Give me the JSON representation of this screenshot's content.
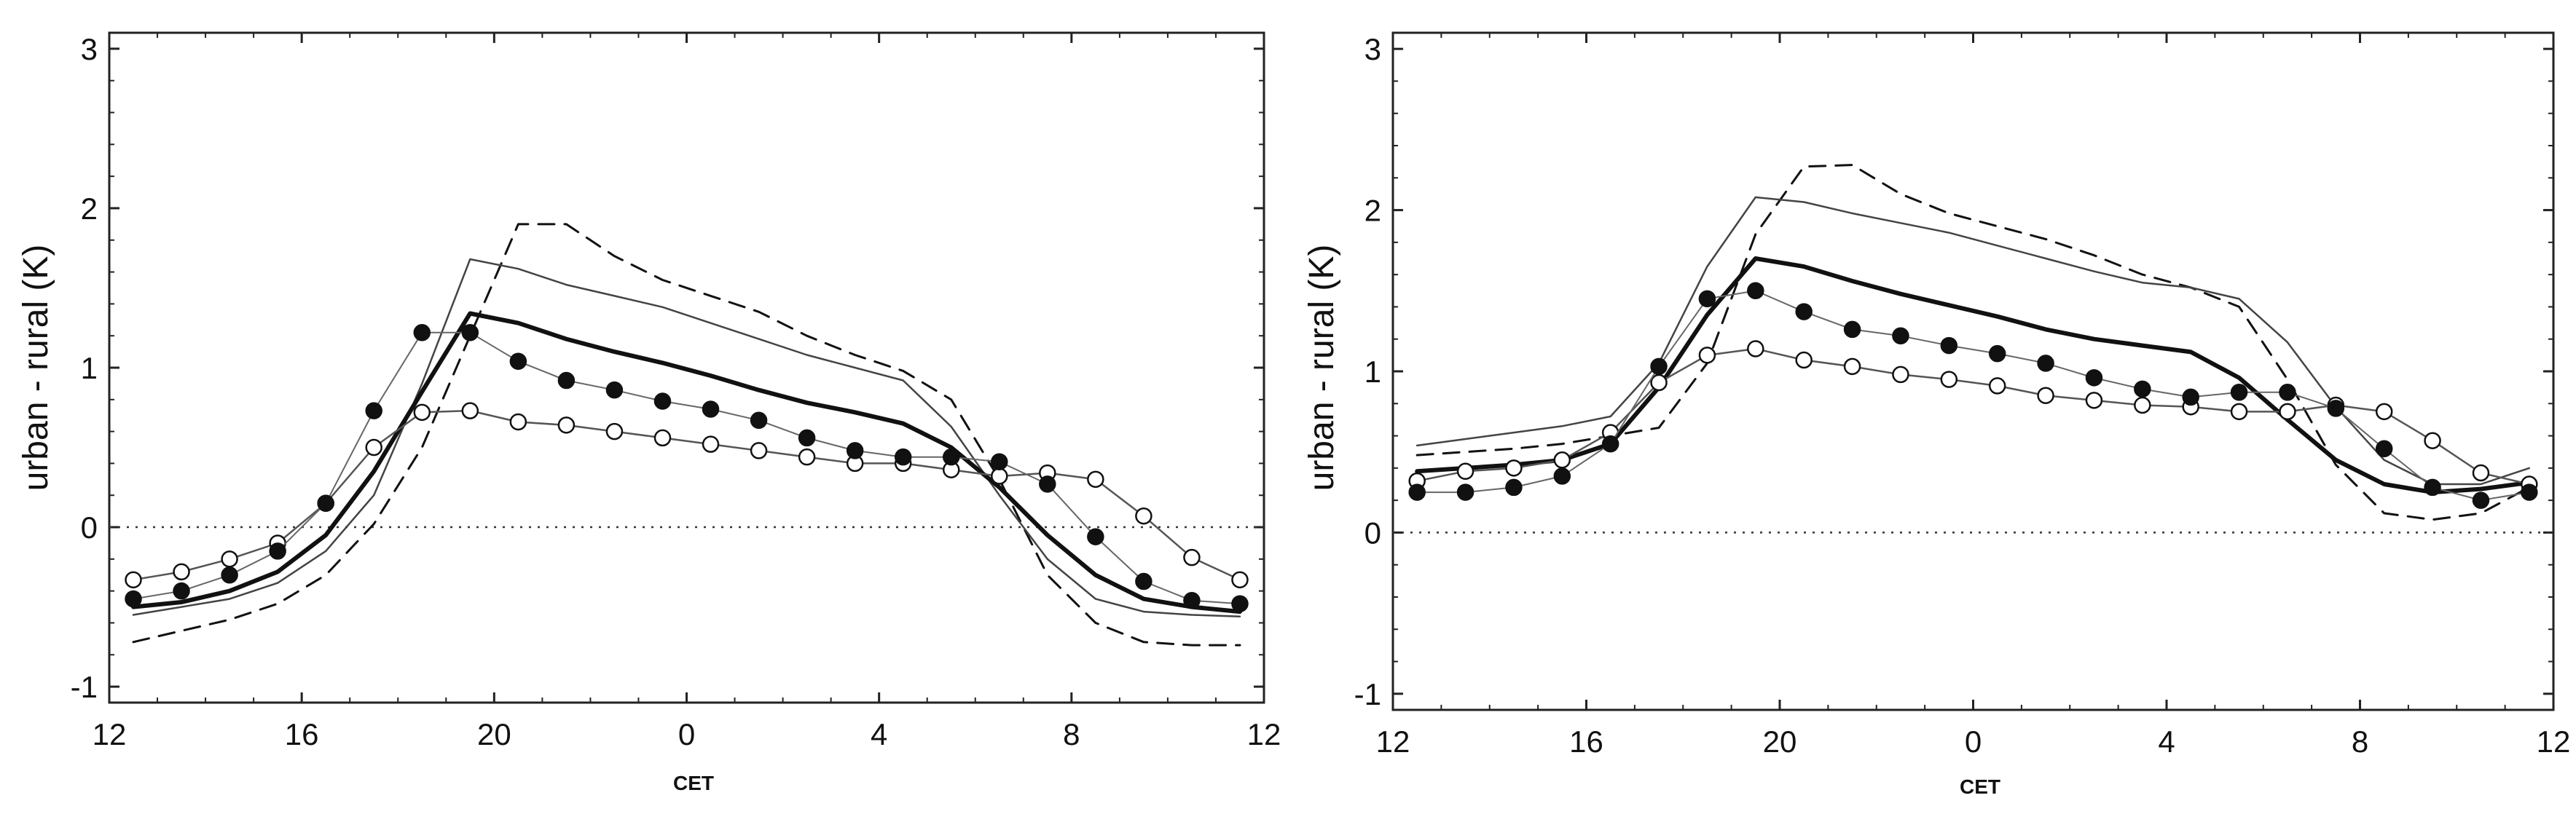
{
  "chart_data": [
    {
      "type": "line",
      "panel": "left",
      "title": "",
      "xlabel": "CET",
      "ylabel": "urban - rural (K)",
      "x_ticks": [
        "12",
        "16",
        "20",
        "0",
        "4",
        "8",
        "12"
      ],
      "y_ticks": [
        "-1",
        "0",
        "1",
        "2",
        "3"
      ],
      "xlim": [
        12,
        36
      ],
      "ylim": [
        -1.1,
        3.1
      ],
      "grid": false,
      "zero_line": true,
      "x": [
        12.5,
        13.5,
        14.5,
        15.5,
        16.5,
        17.5,
        18.5,
        19.5,
        20.5,
        21.5,
        22.5,
        23.5,
        24.5,
        25.5,
        26.5,
        27.5,
        28.5,
        29.5,
        30.5,
        31.5,
        32.5,
        33.5,
        34.5,
        35.5
      ],
      "series": [
        {
          "name": "filled circles",
          "style": "filled-marker",
          "values": [
            -0.45,
            -0.4,
            -0.3,
            -0.15,
            0.15,
            0.73,
            1.22,
            1.22,
            1.04,
            0.92,
            0.86,
            0.79,
            0.74,
            0.67,
            0.56,
            0.48,
            0.44,
            0.44,
            0.41,
            0.27,
            -0.06,
            -0.34,
            -0.46,
            -0.48
          ]
        },
        {
          "name": "open circles",
          "style": "open-marker",
          "values": [
            -0.33,
            -0.28,
            -0.2,
            -0.1,
            0.15,
            0.5,
            0.72,
            0.73,
            0.66,
            0.64,
            0.6,
            0.56,
            0.52,
            0.48,
            0.44,
            0.4,
            0.4,
            0.36,
            0.32,
            0.34,
            0.3,
            0.07,
            -0.19,
            -0.33
          ]
        },
        {
          "name": "thick solid",
          "style": "thick",
          "values": [
            -0.5,
            -0.47,
            -0.4,
            -0.28,
            -0.05,
            0.35,
            0.85,
            1.34,
            1.28,
            1.18,
            1.1,
            1.03,
            0.95,
            0.86,
            0.78,
            0.72,
            0.65,
            0.5,
            0.25,
            -0.05,
            -0.3,
            -0.45,
            -0.5,
            -0.53
          ]
        },
        {
          "name": "thin solid",
          "style": "thin",
          "values": [
            -0.55,
            -0.5,
            -0.45,
            -0.35,
            -0.15,
            0.2,
            0.9,
            1.68,
            1.62,
            1.52,
            1.45,
            1.38,
            1.28,
            1.18,
            1.08,
            1.0,
            0.92,
            0.63,
            0.2,
            -0.2,
            -0.45,
            -0.53,
            -0.55,
            -0.56
          ]
        },
        {
          "name": "dashed",
          "style": "dashed",
          "values": [
            -0.72,
            -0.65,
            -0.58,
            -0.48,
            -0.3,
            0.02,
            0.5,
            1.2,
            1.9,
            1.9,
            1.7,
            1.55,
            1.45,
            1.35,
            1.2,
            1.08,
            0.98,
            0.8,
            0.3,
            -0.3,
            -0.6,
            -0.72,
            -0.74,
            -0.74
          ]
        }
      ]
    },
    {
      "type": "line",
      "panel": "right",
      "title": "",
      "xlabel": "CET",
      "ylabel": "urban - rural (K)",
      "x_ticks": [
        "12",
        "16",
        "20",
        "0",
        "4",
        "8",
        "12"
      ],
      "y_ticks": [
        "-1",
        "0",
        "1",
        "2",
        "3"
      ],
      "xlim": [
        12,
        36
      ],
      "ylim": [
        -1.1,
        3.1
      ],
      "grid": false,
      "zero_line": true,
      "x": [
        12.5,
        13.5,
        14.5,
        15.5,
        16.5,
        17.5,
        18.5,
        19.5,
        20.5,
        21.5,
        22.5,
        23.5,
        24.5,
        25.5,
        26.5,
        27.5,
        28.5,
        29.5,
        30.5,
        31.5,
        32.5,
        33.5,
        34.5,
        35.5
      ],
      "series": [
        {
          "name": "filled circles",
          "style": "filled-marker",
          "values": [
            0.25,
            0.25,
            0.28,
            0.35,
            0.55,
            1.03,
            1.45,
            1.5,
            1.37,
            1.26,
            1.22,
            1.16,
            1.11,
            1.05,
            0.96,
            0.89,
            0.84,
            0.87,
            0.87,
            0.77,
            0.52,
            0.28,
            0.2,
            0.25
          ]
        },
        {
          "name": "open circles",
          "style": "open-marker",
          "values": [
            0.32,
            0.38,
            0.4,
            0.45,
            0.62,
            0.93,
            1.1,
            1.14,
            1.07,
            1.03,
            0.98,
            0.95,
            0.91,
            0.85,
            0.82,
            0.79,
            0.78,
            0.75,
            0.75,
            0.79,
            0.75,
            0.57,
            0.37,
            0.3
          ]
        },
        {
          "name": "thick solid",
          "style": "thick",
          "values": [
            0.38,
            0.4,
            0.42,
            0.45,
            0.55,
            0.9,
            1.35,
            1.7,
            1.65,
            1.56,
            1.48,
            1.41,
            1.34,
            1.26,
            1.2,
            1.16,
            1.12,
            0.96,
            0.7,
            0.45,
            0.3,
            0.25,
            0.27,
            0.31
          ]
        },
        {
          "name": "thin solid",
          "style": "thin",
          "values": [
            0.54,
            0.58,
            0.62,
            0.66,
            0.72,
            1.05,
            1.65,
            2.08,
            2.05,
            1.98,
            1.92,
            1.86,
            1.78,
            1.7,
            1.62,
            1.55,
            1.52,
            1.45,
            1.18,
            0.78,
            0.45,
            0.3,
            0.3,
            0.4
          ]
        },
        {
          "name": "dashed",
          "style": "dashed",
          "values": [
            0.48,
            0.5,
            0.52,
            0.55,
            0.6,
            0.65,
            1.05,
            1.85,
            2.27,
            2.28,
            2.1,
            1.98,
            1.9,
            1.82,
            1.72,
            1.6,
            1.52,
            1.4,
            0.95,
            0.42,
            0.12,
            0.08,
            0.12,
            0.28
          ]
        }
      ]
    }
  ]
}
